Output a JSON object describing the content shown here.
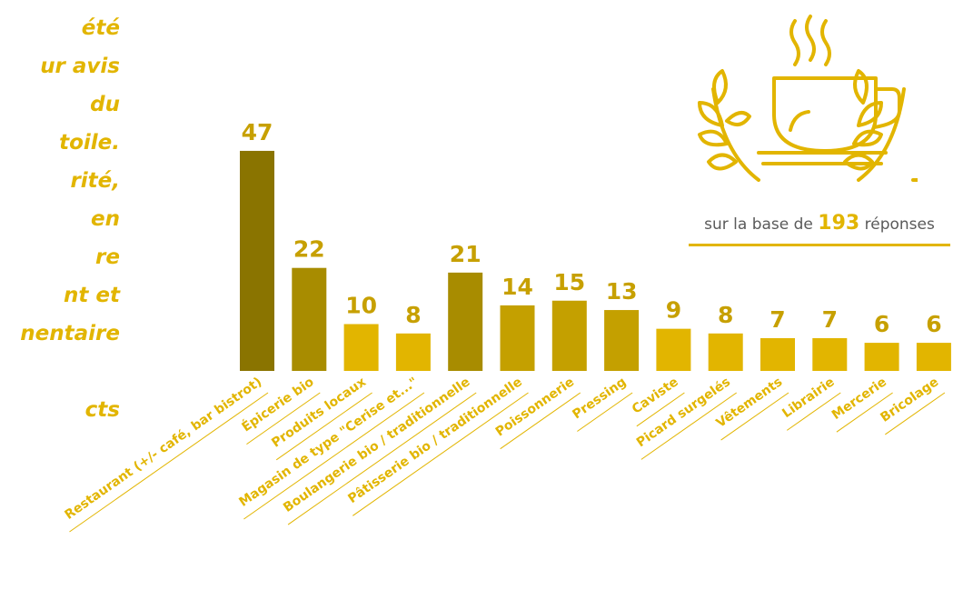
{
  "side_text": [
    "été",
    "ur avis",
    "du",
    "toile.",
    "rité,",
    "en",
    "re",
    "nt et",
    "nentaire",
    "",
    "cts"
  ],
  "basis": {
    "prefix": "sur la base de",
    "count": "193",
    "suffix": "réponses"
  },
  "icon": "coffee-cup-laurel-icon",
  "colors": {
    "accent": "#e2b500",
    "text": "#5a5a5a"
  },
  "chart_data": {
    "type": "bar",
    "categories": [
      "Restaurant (+/- café, bar bistrot)",
      "Épicerie bio",
      "Produits locaux",
      "Magasin de type \"Cerise et...\"",
      "Boulangerie bio / traditionnelle",
      "Pâtisserie bio / traditionnelle",
      "Poissonnerie",
      "Pressing",
      "Caviste",
      "Picard surgelés",
      "Vêtements",
      "Librairie",
      "Mercerie",
      "Bricolage"
    ],
    "values": [
      47,
      22,
      10,
      8,
      21,
      14,
      15,
      13,
      9,
      8,
      7,
      7,
      6,
      6
    ],
    "bar_colors": [
      "#8a7400",
      "#a88c00",
      "#e2b500",
      "#e2b500",
      "#a88c00",
      "#c4a000",
      "#c4a000",
      "#c4a000",
      "#e2b500",
      "#e2b500",
      "#e2b500",
      "#e2b500",
      "#e2b500",
      "#e2b500"
    ],
    "data_labels": true,
    "title": "",
    "xlabel": "",
    "ylabel": ""
  }
}
